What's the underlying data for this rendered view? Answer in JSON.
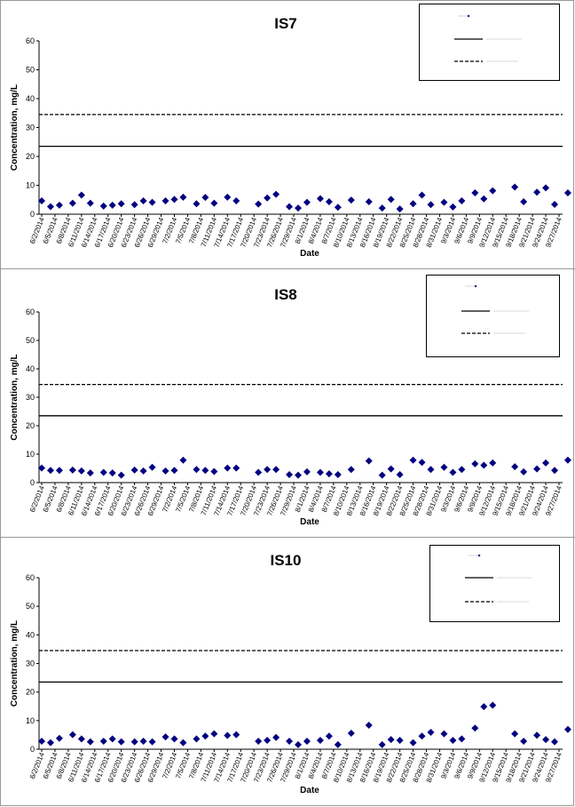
{
  "chart_data": [
    {
      "type": "scatter",
      "title": "IS7",
      "xlabel": "Date",
      "ylabel": "Concentration, mg/L",
      "ylim": [
        0,
        60
      ],
      "yticks": [
        "0",
        "10",
        "20",
        "30",
        "40",
        "50",
        "60"
      ],
      "x_ticks": [
        "6/2/2014",
        "6/5/2014",
        "6/8/2014",
        "6/11/2014",
        "6/14/2014",
        "6/17/2014",
        "6/20/2014",
        "6/23/2014",
        "6/26/2014",
        "6/29/2014",
        "7/2/2014",
        "7/5/2014",
        "7/8/2014",
        "7/11/2014",
        "7/14/2014",
        "7/17/2014",
        "7/20/2014",
        "7/23/2014",
        "7/26/2014",
        "7/29/2014",
        "8/1/2014",
        "8/4/2014",
        "8/7/2014",
        "8/10/2014",
        "8/13/2014",
        "8/16/2014",
        "8/19/2014",
        "8/22/2014",
        "8/25/2014",
        "8/28/2014",
        "8/31/2014",
        "9/3/2014",
        "9/6/2014",
        "9/9/2014",
        "9/12/2014",
        "9/15/2014",
        "9/18/2014",
        "9/21/2014",
        "9/24/2014",
        "9/27/2014"
      ],
      "grid": false,
      "legend_position": "top-right",
      "reference_lines": [
        {
          "value": 23.5,
          "style": "solid"
        },
        {
          "value": 34.5,
          "style": "dashed"
        }
      ],
      "x": [
        "6/2/2014",
        "6/4/2014",
        "6/6/2014",
        "6/9/2014",
        "6/11/2014",
        "6/13/2014",
        "6/16/2014",
        "6/18/2014",
        "6/20/2014",
        "6/23/2014",
        "6/25/2014",
        "6/27/2014",
        "6/30/2014",
        "7/2/2014",
        "7/4/2014",
        "7/7/2014",
        "7/9/2014",
        "7/11/2014",
        "7/14/2014",
        "7/16/2014",
        "7/21/2014",
        "7/23/2014",
        "7/25/2014",
        "7/28/2014",
        "7/30/2014",
        "8/1/2014",
        "8/4/2014",
        "8/6/2014",
        "8/8/2014",
        "8/11/2014",
        "8/15/2014",
        "8/18/2014",
        "8/20/2014",
        "8/22/2014",
        "8/25/2014",
        "8/27/2014",
        "8/29/2014",
        "9/1/2014",
        "9/3/2014",
        "9/5/2014",
        "9/8/2014",
        "9/10/2014",
        "9/12/2014",
        "9/17/2014",
        "9/19/2014",
        "9/22/2014",
        "9/24/2014",
        "9/26/2014",
        "9/29/2014"
      ],
      "y": [
        4.6,
        2.6,
        3.1,
        3.8,
        6.6,
        3.8,
        2.8,
        3.1,
        3.6,
        3.3,
        4.6,
        4.1,
        4.6,
        5.1,
        5.9,
        3.6,
        5.8,
        3.8,
        5.9,
        4.6,
        3.5,
        5.6,
        6.9,
        2.6,
        2.1,
        4.1,
        5.4,
        4.3,
        2.4,
        4.9,
        4.3,
        2.1,
        5.1,
        1.8,
        3.6,
        6.6,
        3.3,
        4.1,
        2.5,
        4.6,
        7.4,
        5.3,
        8.1,
        9.4,
        4.3,
        7.6,
        9.1,
        3.4,
        7.4
      ]
    },
    {
      "type": "scatter",
      "title": "IS8",
      "xlabel": "Date",
      "ylabel": "Concentration, mg/L",
      "ylim": [
        0,
        60
      ],
      "yticks": [
        "0",
        "10",
        "20",
        "30",
        "40",
        "50",
        "60"
      ],
      "x_ticks": [
        "6/2/2014",
        "6/5/2014",
        "6/8/2014",
        "6/11/2014",
        "6/14/2014",
        "6/17/2014",
        "6/20/2014",
        "6/23/2014",
        "6/26/2014",
        "6/29/2014",
        "7/2/2014",
        "7/5/2014",
        "7/8/2014",
        "7/11/2014",
        "7/14/2014",
        "7/17/2014",
        "7/20/2014",
        "7/23/2014",
        "7/26/2014",
        "7/29/2014",
        "8/1/2014",
        "8/4/2014",
        "8/7/2014",
        "8/10/2014",
        "8/13/2014",
        "8/16/2014",
        "8/19/2014",
        "8/22/2014",
        "8/25/2014",
        "8/28/2014",
        "8/31/2014",
        "9/3/2014",
        "9/6/2014",
        "9/9/2014",
        "9/12/2014",
        "9/15/2014",
        "9/18/2014",
        "9/21/2014",
        "9/24/2014",
        "9/27/2014"
      ],
      "grid": false,
      "legend_position": "top-right",
      "reference_lines": [
        {
          "value": 23.5,
          "style": "solid"
        },
        {
          "value": 34.5,
          "style": "dashed"
        }
      ],
      "x": [
        "6/2/2014",
        "6/4/2014",
        "6/6/2014",
        "6/9/2014",
        "6/11/2014",
        "6/13/2014",
        "6/16/2014",
        "6/18/2014",
        "6/20/2014",
        "6/23/2014",
        "6/25/2014",
        "6/27/2014",
        "6/30/2014",
        "7/2/2014",
        "7/4/2014",
        "7/7/2014",
        "7/9/2014",
        "7/11/2014",
        "7/14/2014",
        "7/16/2014",
        "7/21/2014",
        "7/23/2014",
        "7/25/2014",
        "7/28/2014",
        "7/30/2014",
        "8/1/2014",
        "8/4/2014",
        "8/6/2014",
        "8/8/2014",
        "8/11/2014",
        "8/15/2014",
        "8/18/2014",
        "8/20/2014",
        "8/22/2014",
        "8/25/2014",
        "8/27/2014",
        "8/29/2014",
        "9/1/2014",
        "9/3/2014",
        "9/5/2014",
        "9/8/2014",
        "9/10/2014",
        "9/12/2014",
        "9/17/2014",
        "9/19/2014",
        "9/22/2014",
        "9/24/2014",
        "9/26/2014",
        "9/29/2014"
      ],
      "y": [
        5.1,
        4.3,
        4.3,
        4.4,
        4.1,
        3.4,
        3.6,
        3.4,
        2.6,
        4.4,
        4.1,
        5.4,
        4.1,
        4.3,
        7.9,
        4.6,
        4.3,
        3.9,
        5.1,
        5.1,
        3.6,
        4.6,
        4.6,
        2.8,
        2.6,
        3.8,
        3.6,
        3.1,
        2.8,
        4.6,
        7.6,
        2.6,
        4.8,
        2.8,
        7.9,
        7.1,
        4.6,
        5.4,
        3.6,
        4.6,
        6.6,
        6.1,
        6.9,
        5.6,
        3.8,
        4.8,
        6.9,
        4.3,
        7.9
      ]
    },
    {
      "type": "scatter",
      "title": "IS10",
      "xlabel": "Date",
      "ylabel": "Concentration, mg/L",
      "ylim": [
        0,
        60
      ],
      "yticks": [
        "0",
        "10",
        "20",
        "30",
        "40",
        "50",
        "60"
      ],
      "x_ticks": [
        "6/2/2014",
        "6/5/2014",
        "6/8/2014",
        "6/11/2014",
        "6/14/2014",
        "6/17/2014",
        "6/20/2014",
        "6/23/2014",
        "6/26/2014",
        "6/29/2014",
        "7/2/2014",
        "7/5/2014",
        "7/8/2014",
        "7/11/2014",
        "7/14/2014",
        "7/17/2014",
        "7/20/2014",
        "7/23/2014",
        "7/26/2014",
        "7/29/2014",
        "8/1/2014",
        "8/4/2014",
        "8/7/2014",
        "8/10/2014",
        "8/13/2014",
        "8/16/2014",
        "8/19/2014",
        "8/22/2014",
        "8/25/2014",
        "8/28/2014",
        "8/31/2014",
        "9/3/2014",
        "9/6/2014",
        "9/9/2014",
        "9/12/2014",
        "9/15/2014",
        "9/18/2014",
        "9/21/2014",
        "9/24/2014",
        "9/27/2014"
      ],
      "grid": false,
      "legend_position": "top-right",
      "reference_lines": [
        {
          "value": 23.5,
          "style": "solid"
        },
        {
          "value": 34.5,
          "style": "dashed"
        }
      ],
      "x": [
        "6/2/2014",
        "6/4/2014",
        "6/6/2014",
        "6/9/2014",
        "6/11/2014",
        "6/13/2014",
        "6/16/2014",
        "6/18/2014",
        "6/20/2014",
        "6/23/2014",
        "6/25/2014",
        "6/27/2014",
        "6/30/2014",
        "7/2/2014",
        "7/4/2014",
        "7/7/2014",
        "7/9/2014",
        "7/11/2014",
        "7/14/2014",
        "7/16/2014",
        "7/21/2014",
        "7/23/2014",
        "7/25/2014",
        "7/28/2014",
        "7/30/2014",
        "8/1/2014",
        "8/4/2014",
        "8/6/2014",
        "8/8/2014",
        "8/11/2014",
        "8/15/2014",
        "8/18/2014",
        "8/20/2014",
        "8/22/2014",
        "8/25/2014",
        "8/27/2014",
        "8/29/2014",
        "9/1/2014",
        "9/3/2014",
        "9/5/2014",
        "9/8/2014",
        "9/10/2014",
        "9/12/2014",
        "9/17/2014",
        "9/19/2014",
        "9/22/2014",
        "9/24/2014",
        "9/26/2014",
        "9/29/2014"
      ],
      "y": [
        2.8,
        2.3,
        3.8,
        5.1,
        3.6,
        2.6,
        2.8,
        3.6,
        2.6,
        2.6,
        2.8,
        2.6,
        4.3,
        3.6,
        2.3,
        3.6,
        4.6,
        5.4,
        4.8,
        5.1,
        2.8,
        3.1,
        4.1,
        2.8,
        1.6,
        2.8,
        3.1,
        4.6,
        1.6,
        5.6,
        8.4,
        1.6,
        3.4,
        3.1,
        2.3,
        4.6,
        5.9,
        5.4,
        3.1,
        3.6,
        7.4,
        14.9,
        15.4,
        5.4,
        2.8,
        4.9,
        3.4,
        2.6,
        6.9
      ]
    }
  ]
}
